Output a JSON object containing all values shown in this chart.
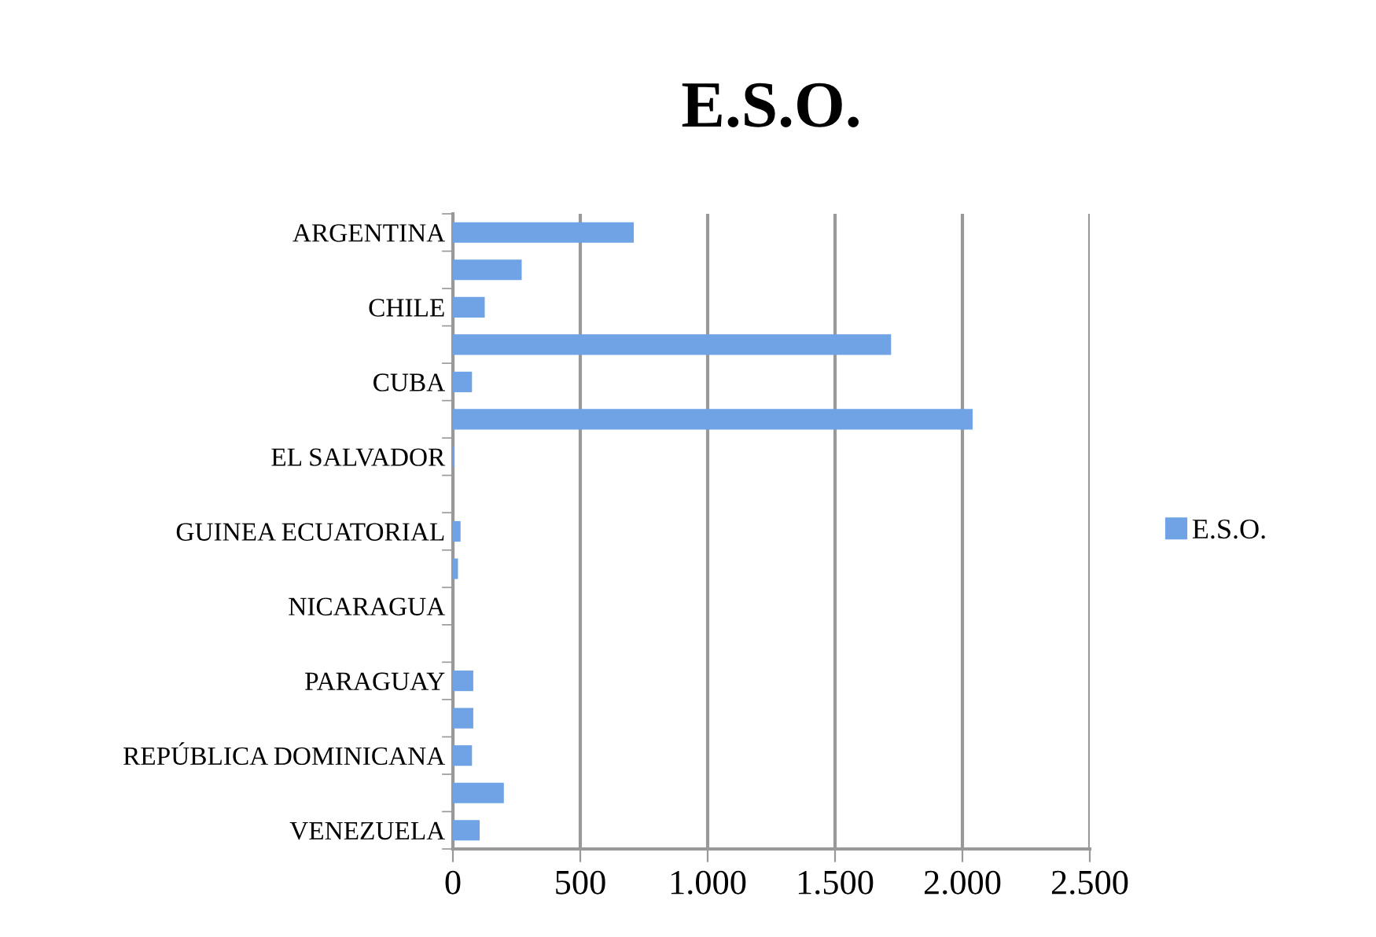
{
  "chart_data": {
    "type": "bar",
    "orientation": "horizontal",
    "title": "E.S.O.",
    "categories": [
      "ARGENTINA",
      null,
      "CHILE",
      null,
      "CUBA",
      null,
      "EL SALVADOR",
      null,
      "GUINEA ECUATORIAL",
      null,
      "NICARAGUA",
      null,
      "PARAGUAY",
      null,
      "REPÚBLICA DOMINICANA",
      null,
      "VENEZUELA"
    ],
    "series": [
      {
        "name": "E.S.O.",
        "color": "#6fa3e6",
        "values": [
          710,
          270,
          125,
          1720,
          75,
          2040,
          5,
          0,
          30,
          20,
          0,
          0,
          80,
          80,
          75,
          200,
          105
        ]
      }
    ],
    "xlim": [
      0,
      2500
    ],
    "xticks": [
      0,
      500,
      {
        "value": 1000,
        "label": "1.000"
      },
      {
        "value": 1500,
        "label": "1.500"
      },
      {
        "value": 2000,
        "label": "2.000"
      },
      {
        "value": 2500,
        "label": "2.500"
      }
    ],
    "grid": "x",
    "legend": "right"
  }
}
